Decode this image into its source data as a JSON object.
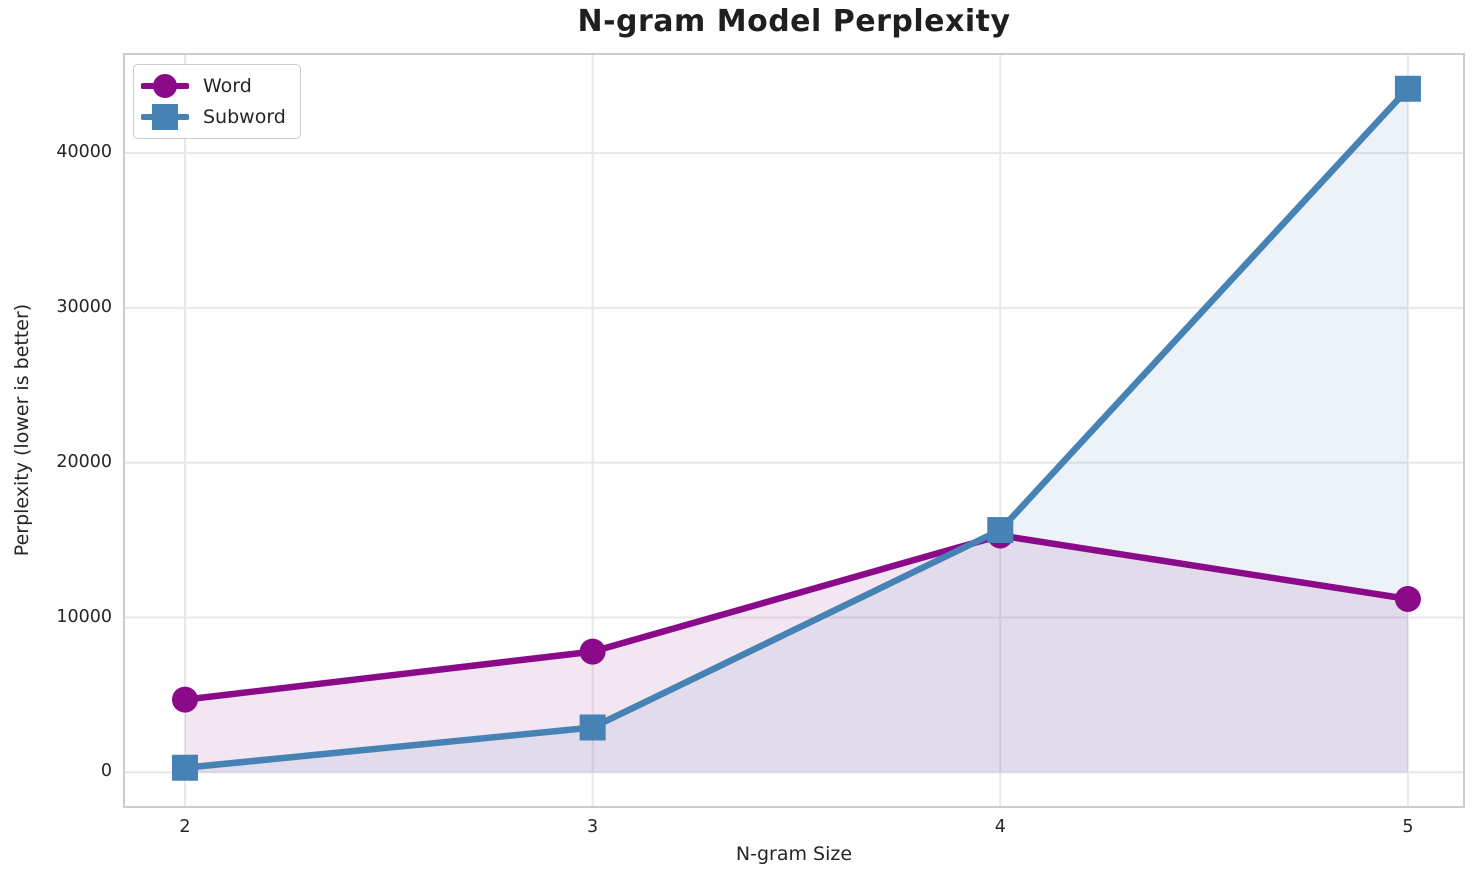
{
  "chart_data": {
    "type": "line",
    "title": "N-gram Model Perplexity",
    "xlabel": "N-gram Size",
    "ylabel": "Perplexity (lower is better)",
    "x": [
      2,
      3,
      4,
      5
    ],
    "xtick_labels": [
      "2",
      "3",
      "4",
      "5"
    ],
    "yticks": [
      0,
      10000,
      20000,
      30000,
      40000
    ],
    "ytick_labels": [
      "0",
      "10000",
      "20000",
      "30000",
      "40000"
    ],
    "xlim": [
      1.848,
      5.14
    ],
    "ylim": [
      -2300,
      46460
    ],
    "grid": true,
    "legend_position": "upper-left",
    "fill_to_zero": true,
    "fill_alpha": 0.1,
    "series": [
      {
        "name": "Word",
        "marker": "circle",
        "color": "#8a0a8a",
        "values": [
          4700,
          7800,
          15300,
          11200
        ]
      },
      {
        "name": "Subword",
        "marker": "square",
        "color": "#4682b4",
        "values": [
          300,
          2900,
          15650,
          44150
        ]
      }
    ]
  }
}
